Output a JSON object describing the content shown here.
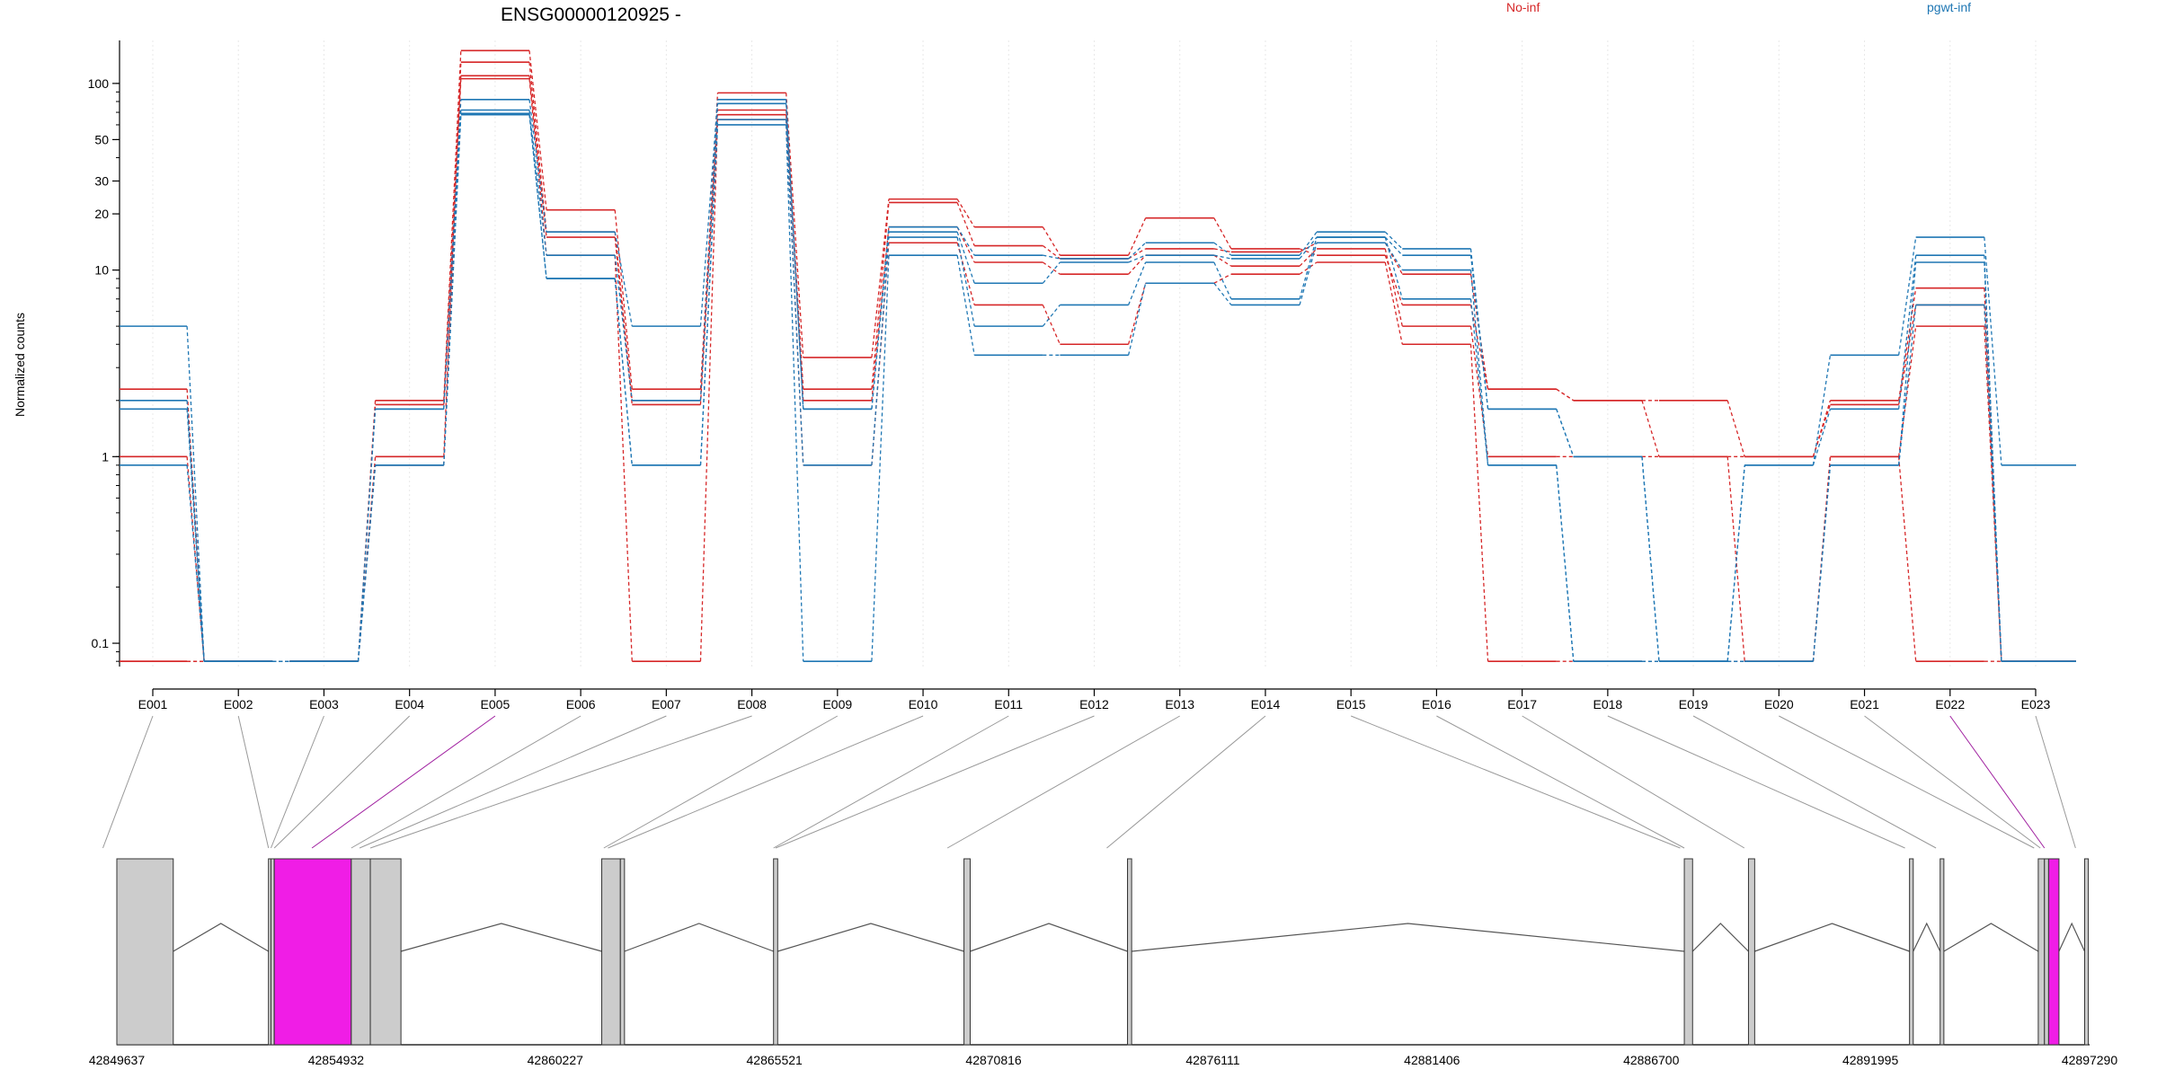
{
  "header": {
    "title": "ENSG00000120925 -"
  },
  "colors": {
    "group_a": "#d62728",
    "group_b": "#1f77b4",
    "highlight": "#f01de6",
    "exon_fill": "#cccccc",
    "highlight_link": "#a020a0",
    "link": "#999999"
  },
  "chart_data": {
    "type": "line",
    "title": "ENSG00000120925 -",
    "xlabel": "",
    "ylabel": "Normalized counts",
    "y_scale": "log",
    "ylim": [
      0.075,
      170
    ],
    "y_ticks": [
      0.1,
      1,
      10,
      20,
      30,
      50,
      100
    ],
    "y_tick_labels": [
      "0.1",
      "1",
      "10",
      "20",
      "30",
      "50",
      "100"
    ],
    "grid": "vertical",
    "legend": "top-right",
    "legend_labels": [
      "No-inf",
      "pgwt-inf"
    ],
    "categories": [
      "E001",
      "E002",
      "E003",
      "E004",
      "E005",
      "E006",
      "E007",
      "E008",
      "E009",
      "E010",
      "E011",
      "E012",
      "E013",
      "E014",
      "E015",
      "E016",
      "E017",
      "E018",
      "E019",
      "E020",
      "E021",
      "E022",
      "E023"
    ],
    "series": [
      {
        "name": "No-inf",
        "values": [
          2.3,
          0.08,
          0.08,
          2.0,
          150,
          21,
          2.3,
          89,
          3.4,
          24,
          17,
          12,
          19,
          13,
          12,
          6.5,
          2.3,
          2.0,
          2.0,
          1.0,
          2.0,
          8.0,
          0.08
        ]
      },
      {
        "name": "No-inf",
        "values": [
          1.0,
          0.08,
          0.08,
          1.0,
          130,
          16,
          2.0,
          72,
          2.3,
          23,
          13.5,
          11.5,
          13,
          12.5,
          14,
          9.5,
          2.3,
          2.0,
          1.0,
          1.0,
          1.9,
          6.5,
          0.08
        ]
      },
      {
        "name": "No-inf",
        "values": [
          0.08,
          0.08,
          0.08,
          1.9,
          110,
          15,
          1.9,
          68,
          2.0,
          17,
          11,
          9.5,
          12,
          10.5,
          13,
          5.0,
          1.0,
          1.0,
          1.0,
          0.08,
          1.0,
          5.0,
          0.08
        ]
      },
      {
        "name": "No-inf",
        "values": [
          0.08,
          0.08,
          0.08,
          0.9,
          106,
          12,
          0.08,
          64,
          0.9,
          14,
          6.5,
          4.0,
          8.5,
          9.5,
          11,
          4.0,
          0.08,
          0.08,
          0.08,
          0.08,
          1.0,
          0.08,
          0.08
        ]
      },
      {
        "name": "pgwt-inf",
        "values": [
          5.0,
          0.08,
          0.08,
          1.8,
          82,
          16,
          5.0,
          82,
          1.8,
          17,
          12,
          11.5,
          14,
          12,
          16,
          13,
          1.8,
          1.0,
          0.08,
          0.9,
          3.5,
          15,
          0.9
        ]
      },
      {
        "name": "pgwt-inf",
        "values": [
          2.0,
          0.08,
          0.08,
          1.8,
          72,
          12,
          2.0,
          78,
          1.8,
          16,
          8.5,
          11,
          12,
          11.5,
          15,
          12,
          1.8,
          1.0,
          0.08,
          0.9,
          1.8,
          12,
          0.08
        ]
      },
      {
        "name": "pgwt-inf",
        "values": [
          1.8,
          0.08,
          0.08,
          0.9,
          69,
          9,
          0.9,
          64,
          0.9,
          15,
          5.0,
          6.5,
          11,
          7.0,
          15,
          7.0,
          0.9,
          0.08,
          0.08,
          0.08,
          0.9,
          11,
          0.08
        ]
      },
      {
        "name": "pgwt-inf",
        "values": [
          0.9,
          0.08,
          0.08,
          0.9,
          68,
          9,
          0.9,
          60,
          0.08,
          12,
          3.5,
          3.5,
          8.5,
          6.5,
          14,
          10,
          0.9,
          0.08,
          0.08,
          0.08,
          0.9,
          6.5,
          0.08
        ]
      }
    ],
    "gene_model": {
      "coordinate_ticks": [
        "42849637",
        "42854932",
        "42860227",
        "42865521",
        "42870816",
        "42876111",
        "42881406",
        "42886700",
        "42891995",
        "42897290"
      ],
      "coordinate_start": 42849637,
      "coordinate_end": 42897290,
      "segments": [
        {
          "start": 42849637,
          "end": 42851000,
          "exon": "E001",
          "highlight": false
        },
        {
          "start": 42853300,
          "end": 42853360,
          "exon": "E002",
          "highlight": false
        },
        {
          "start": 42853360,
          "end": 42853440,
          "exon": "E003",
          "highlight": false
        },
        {
          "start": 42853440,
          "end": 42855300,
          "exon": "E005",
          "highlight": true
        },
        {
          "start": 42855300,
          "end": 42855760,
          "exon": "E006",
          "highlight": false
        },
        {
          "start": 42855760,
          "end": 42856500,
          "exon": "E008",
          "highlight": false
        },
        {
          "start": 42861350,
          "end": 42861800,
          "exon": "E009",
          "highlight": false
        },
        {
          "start": 42861800,
          "end": 42861900,
          "exon": "E010",
          "highlight": false
        },
        {
          "start": 42865500,
          "end": 42865600,
          "exon": "E011",
          "highlight": false
        },
        {
          "start": 42870100,
          "end": 42870250,
          "exon": "E012",
          "highlight": false
        },
        {
          "start": 42874050,
          "end": 42874150,
          "exon": "E013",
          "highlight": false
        },
        {
          "start": 42887500,
          "end": 42887700,
          "exon": "E016",
          "highlight": false
        },
        {
          "start": 42889050,
          "end": 42889200,
          "exon": "E017",
          "highlight": false
        },
        {
          "start": 42892940,
          "end": 42893030,
          "exon": "E018",
          "highlight": false
        },
        {
          "start": 42893680,
          "end": 42893770,
          "exon": "E019",
          "highlight": false
        },
        {
          "start": 42896050,
          "end": 42896200,
          "exon": "E020",
          "highlight": false
        },
        {
          "start": 42896200,
          "end": 42896300,
          "exon": "E021",
          "highlight": false
        },
        {
          "start": 42896300,
          "end": 42896550,
          "exon": "E022",
          "highlight": true
        },
        {
          "start": 42897170,
          "end": 42897260,
          "exon": "E023",
          "highlight": false
        }
      ],
      "exon_anchors": [
        {
          "exon": "E001",
          "pos": 42849300
        },
        {
          "exon": "E002",
          "pos": 42853300
        },
        {
          "exon": "E003",
          "pos": 42853360
        },
        {
          "exon": "E004",
          "pos": 42853440
        },
        {
          "exon": "E005",
          "pos": 42854350
        },
        {
          "exon": "E006",
          "pos": 42855300
        },
        {
          "exon": "E007",
          "pos": 42855500
        },
        {
          "exon": "E008",
          "pos": 42855760
        },
        {
          "exon": "E009",
          "pos": 42861400
        },
        {
          "exon": "E010",
          "pos": 42861500
        },
        {
          "exon": "E011",
          "pos": 42865500
        },
        {
          "exon": "E012",
          "pos": 42865550
        },
        {
          "exon": "E013",
          "pos": 42869700
        },
        {
          "exon": "E014",
          "pos": 42873550
        },
        {
          "exon": "E015",
          "pos": 42887400
        },
        {
          "exon": "E016",
          "pos": 42887500
        },
        {
          "exon": "E017",
          "pos": 42888950
        },
        {
          "exon": "E018",
          "pos": 42892830
        },
        {
          "exon": "E019",
          "pos": 42893580
        },
        {
          "exon": "E020",
          "pos": 42895950
        },
        {
          "exon": "E021",
          "pos": 42896100
        },
        {
          "exon": "E022",
          "pos": 42896200
        },
        {
          "exon": "E023",
          "pos": 42896950
        }
      ]
    }
  }
}
